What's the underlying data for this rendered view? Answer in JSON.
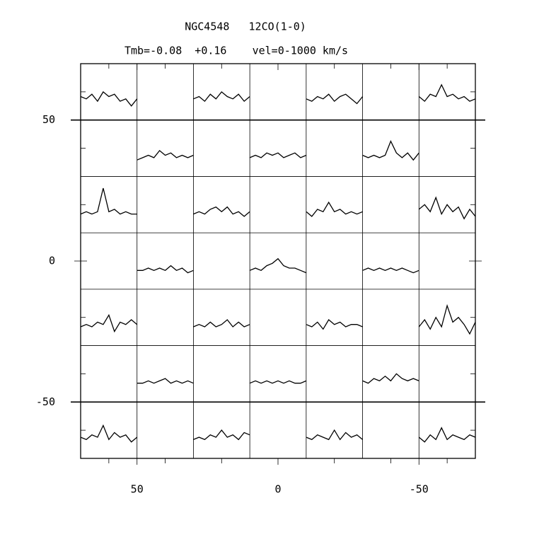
{
  "chart_data": {
    "type": "spectral-grid",
    "title": "NGC4548   12CO(1-0)",
    "subtitle": "Tmb=-0.08  +0.16    vel=0-1000 km/s",
    "xlim": [
      70,
      -70
    ],
    "ylim": [
      -70,
      70
    ],
    "xticks": [
      50,
      0,
      -50
    ],
    "yticks": [
      50,
      0,
      -50
    ],
    "minor_ticks": [
      60,
      40,
      20,
      -20,
      -40,
      -60
    ],
    "xgrid": [
      50,
      30,
      10,
      -10,
      -30,
      -50
    ],
    "ygrid": [
      50,
      30,
      10,
      -10,
      -30,
      -50
    ],
    "spectrum_xlim": [
      0,
      1000
    ],
    "spectrum_ylim": [
      -0.08,
      0.16
    ],
    "velocity": [
      0,
      100,
      200,
      300,
      400,
      500,
      600,
      700,
      800,
      900,
      1000
    ],
    "color": "#000000",
    "spectra": [
      {
        "x_offset": 60,
        "y_offset": 60,
        "values": [
          0.02,
          0.01,
          0.03,
          0.0,
          0.04,
          0.02,
          0.03,
          0.0,
          0.01,
          -0.02,
          0.01
        ]
      },
      {
        "x_offset": 20,
        "y_offset": 60,
        "values": [
          0.01,
          0.02,
          0.0,
          0.03,
          0.01,
          0.04,
          0.02,
          0.01,
          0.03,
          0.0,
          0.02
        ]
      },
      {
        "x_offset": -20,
        "y_offset": 60,
        "values": [
          0.01,
          0.0,
          0.02,
          0.01,
          0.03,
          0.0,
          0.02,
          0.03,
          0.01,
          -0.01,
          0.02
        ]
      },
      {
        "x_offset": -60,
        "y_offset": 60,
        "values": [
          0.02,
          0.0,
          0.03,
          0.02,
          0.07,
          0.02,
          0.03,
          0.01,
          0.02,
          0.0,
          0.01
        ]
      },
      {
        "x_offset": 40,
        "y_offset": 40,
        "values": [
          -0.01,
          0.0,
          0.01,
          0.0,
          0.03,
          0.01,
          0.02,
          0.0,
          0.01,
          0.0,
          0.01
        ]
      },
      {
        "x_offset": 0,
        "y_offset": 40,
        "values": [
          0.0,
          0.01,
          0.0,
          0.02,
          0.01,
          0.02,
          0.0,
          0.01,
          0.02,
          0.0,
          0.01
        ]
      },
      {
        "x_offset": -40,
        "y_offset": 40,
        "values": [
          0.01,
          0.0,
          0.01,
          0.0,
          0.01,
          0.07,
          0.02,
          0.0,
          0.02,
          -0.01,
          0.02
        ]
      },
      {
        "x_offset": 60,
        "y_offset": 20,
        "values": [
          0.0,
          0.01,
          0.0,
          0.01,
          0.11,
          0.01,
          0.02,
          0.0,
          0.01,
          0.0,
          0.0
        ]
      },
      {
        "x_offset": 20,
        "y_offset": 20,
        "values": [
          0.0,
          0.01,
          0.0,
          0.02,
          0.03,
          0.01,
          0.03,
          0.0,
          0.01,
          -0.01,
          0.01
        ]
      },
      {
        "x_offset": -20,
        "y_offset": 20,
        "values": [
          0.01,
          -0.01,
          0.02,
          0.01,
          0.05,
          0.01,
          0.02,
          0.0,
          0.01,
          0.0,
          0.01
        ]
      },
      {
        "x_offset": -60,
        "y_offset": 20,
        "values": [
          0.02,
          0.04,
          0.01,
          0.07,
          0.0,
          0.04,
          0.01,
          0.03,
          -0.02,
          0.02,
          -0.01
        ]
      },
      {
        "x_offset": 40,
        "y_offset": 0,
        "values": [
          0.0,
          0.0,
          0.01,
          0.0,
          0.01,
          0.0,
          0.02,
          0.0,
          0.01,
          -0.01,
          0.0
        ]
      },
      {
        "x_offset": 0,
        "y_offset": 0,
        "values": [
          0.0,
          0.01,
          0.0,
          0.02,
          0.03,
          0.05,
          0.02,
          0.01,
          0.01,
          0.0,
          -0.01
        ]
      },
      {
        "x_offset": -40,
        "y_offset": 0,
        "values": [
          0.0,
          0.01,
          0.0,
          0.01,
          0.0,
          0.01,
          0.0,
          0.01,
          0.0,
          -0.01,
          0.0
        ]
      },
      {
        "x_offset": 60,
        "y_offset": -20,
        "values": [
          0.0,
          0.01,
          0.0,
          0.02,
          0.01,
          0.05,
          -0.02,
          0.02,
          0.01,
          0.03,
          0.01
        ]
      },
      {
        "x_offset": 20,
        "y_offset": -20,
        "values": [
          0.0,
          0.01,
          0.0,
          0.02,
          0.0,
          0.01,
          0.03,
          0.0,
          0.02,
          0.0,
          0.01
        ]
      },
      {
        "x_offset": -20,
        "y_offset": -20,
        "values": [
          0.01,
          0.0,
          0.02,
          -0.01,
          0.03,
          0.01,
          0.02,
          0.0,
          0.01,
          0.01,
          0.0
        ]
      },
      {
        "x_offset": -60,
        "y_offset": -20,
        "values": [
          0.0,
          0.03,
          -0.01,
          0.04,
          0.0,
          0.09,
          0.02,
          0.04,
          0.01,
          -0.03,
          0.02
        ]
      },
      {
        "x_offset": 40,
        "y_offset": -40,
        "values": [
          0.0,
          0.0,
          0.01,
          0.0,
          0.01,
          0.02,
          0.0,
          0.01,
          0.0,
          0.01,
          0.0
        ]
      },
      {
        "x_offset": 0,
        "y_offset": -40,
        "values": [
          0.0,
          0.01,
          0.0,
          0.01,
          0.0,
          0.01,
          0.0,
          0.01,
          0.0,
          0.0,
          0.01
        ]
      },
      {
        "x_offset": -40,
        "y_offset": -40,
        "values": [
          0.01,
          0.0,
          0.02,
          0.01,
          0.03,
          0.01,
          0.04,
          0.02,
          0.01,
          0.02,
          0.01
        ]
      },
      {
        "x_offset": 60,
        "y_offset": -60,
        "values": [
          0.01,
          0.0,
          0.02,
          0.01,
          0.06,
          0.0,
          0.03,
          0.01,
          0.02,
          -0.01,
          0.01
        ]
      },
      {
        "x_offset": 20,
        "y_offset": -60,
        "values": [
          0.0,
          0.01,
          0.0,
          0.02,
          0.01,
          0.04,
          0.01,
          0.02,
          0.0,
          0.03,
          0.02
        ]
      },
      {
        "x_offset": -20,
        "y_offset": -60,
        "values": [
          0.01,
          0.0,
          0.02,
          0.01,
          0.0,
          0.04,
          0.0,
          0.03,
          0.01,
          0.02,
          0.0
        ]
      },
      {
        "x_offset": -60,
        "y_offset": -60,
        "values": [
          0.01,
          -0.01,
          0.02,
          0.0,
          0.05,
          0.0,
          0.02,
          0.01,
          0.0,
          0.02,
          0.01
        ]
      }
    ]
  }
}
